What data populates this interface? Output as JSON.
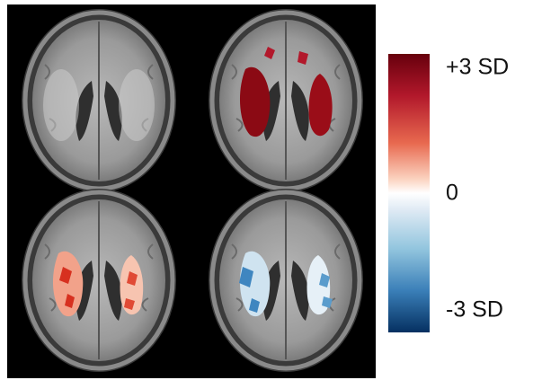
{
  "colorbar": {
    "labels": [
      "+3 SD",
      "0",
      "-3 SD"
    ]
  }
}
